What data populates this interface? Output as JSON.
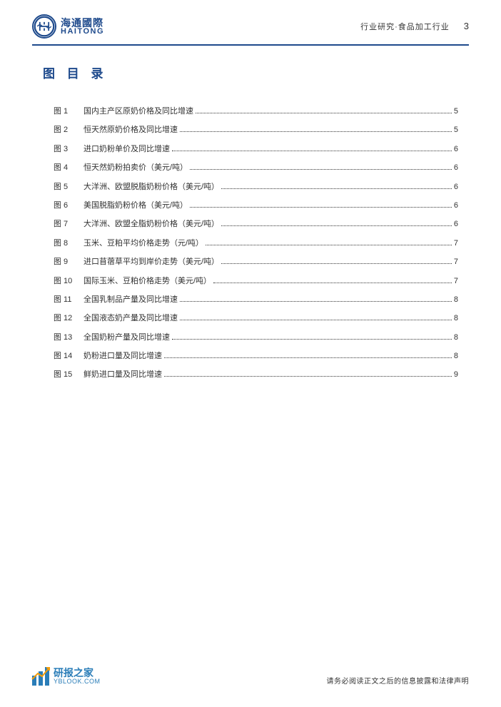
{
  "header": {
    "logo_cn": "海通國際",
    "logo_en": "HAITONG",
    "breadcrumb": "行业研究·食品加工行业",
    "page_number": "3"
  },
  "toc": {
    "title": "图 目 录",
    "items": [
      {
        "label": "图 1",
        "text": "国内主产区原奶价格及同比增速",
        "page": "5"
      },
      {
        "label": "图 2",
        "text": "恒天然原奶价格及同比增速",
        "page": "5"
      },
      {
        "label": "图 3",
        "text": "进口奶粉单价及同比增速",
        "page": "6"
      },
      {
        "label": "图 4",
        "text": "恒天然奶粉拍卖价（美元/吨）",
        "page": "6"
      },
      {
        "label": "图 5",
        "text": "大洋洲、欧盟脱脂奶粉价格（美元/吨）",
        "page": "6"
      },
      {
        "label": "图 6",
        "text": "美国脱脂奶粉价格（美元/吨）",
        "page": "6"
      },
      {
        "label": "图 7",
        "text": "大洋洲、欧盟全脂奶粉价格（美元/吨）",
        "page": "6"
      },
      {
        "label": "图 8",
        "text": "玉米、豆粕平均价格走势（元/吨）",
        "page": "7"
      },
      {
        "label": "图 9",
        "text": "进口苜蓿草平均到岸价走势（美元/吨）",
        "page": "7"
      },
      {
        "label": "图 10",
        "text": "国际玉米、豆粕价格走势（美元/吨）",
        "page": "7"
      },
      {
        "label": "图 11",
        "text": "全国乳制品产量及同比增速",
        "page": "8"
      },
      {
        "label": "图 12",
        "text": "全国液态奶产量及同比增速",
        "page": "8"
      },
      {
        "label": "图 13",
        "text": "全国奶粉产量及同比增速",
        "page": "8"
      },
      {
        "label": "图 14",
        "text": "奶粉进口量及同比增速",
        "page": "8"
      },
      {
        "label": "图 15",
        "text": "鲜奶进口量及同比增速",
        "page": "9"
      }
    ]
  },
  "footer": {
    "watermark_cn": "研报之家",
    "watermark_en": "YBLOOK.COM",
    "disclaimer": "请务必阅读正文之后的信息披露和法律声明"
  },
  "colors": {
    "primary": "#1e4a8c",
    "watermark": "#2a7db8",
    "text": "#333333",
    "background": "#ffffff"
  }
}
